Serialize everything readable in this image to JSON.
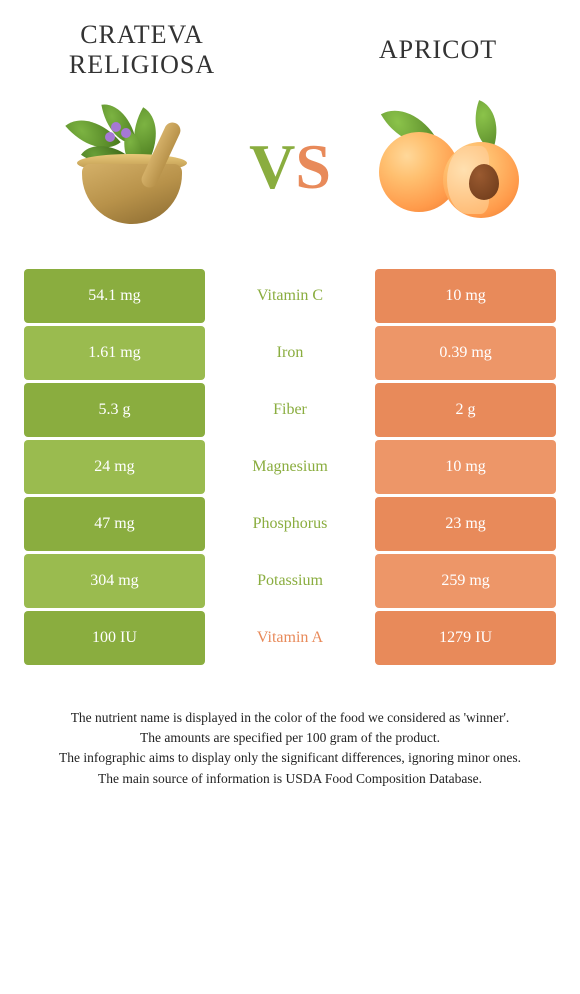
{
  "colors": {
    "green": "#8aad3f",
    "green_alt": "#9abb4f",
    "orange": "#e88a5a",
    "orange_alt": "#ed9668",
    "text_dark": "#333333"
  },
  "header": {
    "left_title_line1": "Crateva",
    "left_title_line2": "religiosa",
    "right_title": "Apricot",
    "vs_v": "V",
    "vs_s": "S"
  },
  "rows": [
    {
      "left": "54.1 mg",
      "label": "Vitamin C",
      "right": "10 mg",
      "winner": "left"
    },
    {
      "left": "1.61 mg",
      "label": "Iron",
      "right": "0.39 mg",
      "winner": "left"
    },
    {
      "left": "5.3 g",
      "label": "Fiber",
      "right": "2 g",
      "winner": "left"
    },
    {
      "left": "24 mg",
      "label": "Magnesium",
      "right": "10 mg",
      "winner": "left"
    },
    {
      "left": "47 mg",
      "label": "Phosphorus",
      "right": "23 mg",
      "winner": "left"
    },
    {
      "left": "304 mg",
      "label": "Potassium",
      "right": "259 mg",
      "winner": "left"
    },
    {
      "left": "100 IU",
      "label": "Vitamin A",
      "right": "1279 IU",
      "winner": "right"
    }
  ],
  "footer": {
    "line1": "The nutrient name is displayed in the color of the food we considered as 'winner'.",
    "line2": "The amounts are specified per 100 gram of the product.",
    "line3": "The infographic aims to display only the significant differences, ignoring minor ones.",
    "line4": "The main source of information is USDA Food Composition Database."
  }
}
